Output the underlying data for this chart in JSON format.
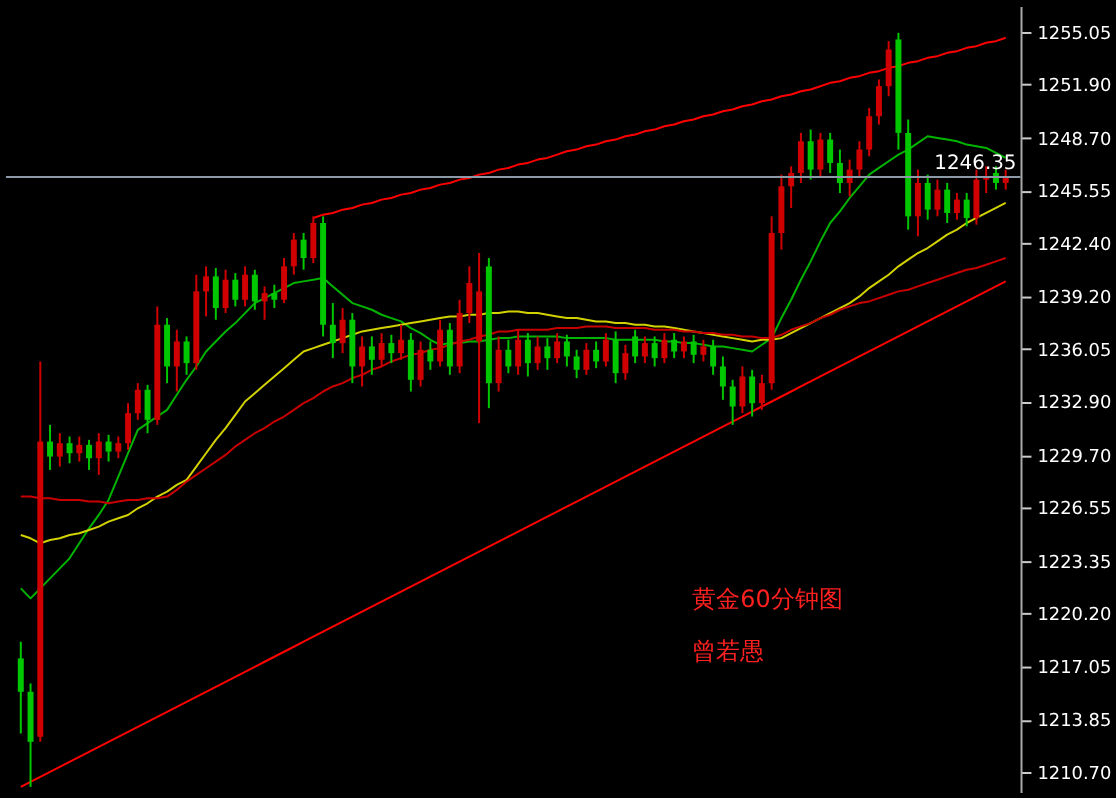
{
  "chart_data": {
    "type": "candlestick",
    "ylim": [
      1209.5,
      1256.6
    ],
    "categories": [
      null,
      null,
      null,
      null,
      null,
      null,
      null,
      null,
      null,
      null,
      null,
      null,
      null,
      null,
      null,
      null,
      null,
      null,
      null,
      null,
      null,
      null,
      null,
      null,
      null,
      null,
      null,
      null,
      null,
      null,
      null,
      null,
      null,
      null,
      null,
      null,
      null,
      null,
      null,
      null,
      null,
      null,
      null,
      null,
      null,
      null,
      null,
      null,
      null,
      null,
      null,
      null,
      null,
      null,
      null,
      null,
      null,
      null,
      null,
      null,
      null,
      null,
      null,
      null,
      null,
      null,
      null,
      null,
      null,
      null,
      null,
      null,
      null,
      null,
      null,
      null,
      null,
      null,
      null,
      null,
      null,
      null,
      null,
      null,
      null,
      null,
      null,
      null,
      null,
      null,
      null,
      null,
      null,
      null,
      null,
      null,
      null,
      null,
      null,
      null,
      null,
      null
    ],
    "yticks": [
      {
        "value": 1210.7,
        "label": "1210.70"
      },
      {
        "value": 1213.85,
        "label": "1213.85"
      },
      {
        "value": 1217.05,
        "label": "1217.05"
      },
      {
        "value": 1220.2,
        "label": "1220.20"
      },
      {
        "value": 1223.35,
        "label": "1223.35"
      },
      {
        "value": 1226.55,
        "label": "1226.55"
      },
      {
        "value": 1229.7,
        "label": "1229.70"
      },
      {
        "value": 1232.9,
        "label": "1232.90"
      },
      {
        "value": 1236.05,
        "label": "1236.05"
      },
      {
        "value": 1239.2,
        "label": "1239.20"
      },
      {
        "value": 1242.4,
        "label": "1242.40"
      },
      {
        "value": 1245.55,
        "label": "1245.55"
      },
      {
        "value": 1248.7,
        "label": "1248.70"
      },
      {
        "value": 1251.9,
        "label": "1251.90"
      },
      {
        "value": 1255.05,
        "label": "1255.05"
      }
    ],
    "tick_labels": "y",
    "series": [
      {
        "colors": [
          "#00c800",
          "#00c800",
          "#d00000",
          "#00c800",
          "#d00000",
          "#00c800",
          "#d00000",
          "#00c800",
          "#d00000",
          "#00c800",
          "#d00000",
          "#d00000",
          "#d00000",
          "#00c800",
          "#d00000",
          "#00c800",
          "#d00000",
          "#00c800",
          "#d00000",
          "#d00000",
          "#00c800",
          "#d00000",
          "#00c800",
          "#d00000",
          "#00c800",
          "#d00000",
          "#00c800",
          "#d00000",
          "#d00000",
          "#00c800",
          "#d00000",
          "#00c800",
          "#00c800",
          "#d00000",
          "#00c800",
          "#d00000",
          "#00c800",
          "#d00000",
          "#00c800",
          "#d00000",
          "#00c800",
          "#d00000",
          "#00c800",
          "#d00000",
          "#00c800",
          "#d00000",
          "#d00000",
          "#d00000",
          "#00c800",
          "#d00000",
          "#00c800",
          "#d00000",
          "#00c800",
          "#d00000",
          "#00c800",
          "#d00000",
          "#00c800",
          "#00c800",
          "#d00000",
          "#00c800",
          "#d00000",
          "#00c800",
          "#d00000",
          "#00c800",
          "#d00000",
          "#00c800",
          "#d00000",
          "#00c800",
          "#d00000",
          "#00c800",
          "#d00000",
          "#00c800",
          "#00c800",
          "#00c800",
          "#d00000",
          "#00c800",
          "#d00000",
          "#d00000",
          "#d00000",
          "#d00000",
          "#d00000",
          "#00c800",
          "#d00000",
          "#00c800",
          "#00c800",
          "#d00000",
          "#d00000",
          "#d00000",
          "#d00000",
          "#d00000",
          "#00c800",
          "#00c800",
          "#d00000",
          "#00c800",
          "#d00000",
          "#00c800",
          "#d00000",
          "#00c800",
          "#d00000",
          "#d00000",
          "#00c800",
          "#d00000"
        ],
        "ohlc": [
          [
            1217.5,
            1218.5,
            1213.0,
            1215.5
          ],
          [
            1215.5,
            1216.0,
            1209.8,
            1212.5
          ],
          [
            1212.8,
            1235.3,
            1212.5,
            1230.5
          ],
          [
            1230.5,
            1231.5,
            1228.8,
            1229.6
          ],
          [
            1229.6,
            1231.0,
            1229.0,
            1230.4
          ],
          [
            1230.4,
            1230.8,
            1229.2,
            1229.8
          ],
          [
            1229.8,
            1230.8,
            1229.3,
            1230.3
          ],
          [
            1230.3,
            1230.6,
            1228.8,
            1229.5
          ],
          [
            1229.5,
            1231.0,
            1228.5,
            1230.5
          ],
          [
            1230.5,
            1230.9,
            1229.3,
            1229.9
          ],
          [
            1229.9,
            1230.8,
            1229.5,
            1230.4
          ],
          [
            1230.4,
            1232.8,
            1230.0,
            1232.2
          ],
          [
            1232.2,
            1234.0,
            1231.8,
            1233.6
          ],
          [
            1233.6,
            1233.9,
            1231.0,
            1231.8
          ],
          [
            1231.8,
            1238.6,
            1231.5,
            1237.5
          ],
          [
            1237.5,
            1237.9,
            1234.0,
            1235.0
          ],
          [
            1235.0,
            1237.2,
            1233.5,
            1236.5
          ],
          [
            1236.5,
            1236.8,
            1234.5,
            1235.2
          ],
          [
            1235.2,
            1240.5,
            1234.8,
            1239.5
          ],
          [
            1239.5,
            1241.0,
            1238.0,
            1240.4
          ],
          [
            1240.4,
            1240.9,
            1237.8,
            1238.5
          ],
          [
            1238.5,
            1240.8,
            1238.2,
            1240.2
          ],
          [
            1240.2,
            1240.6,
            1238.6,
            1239.0
          ],
          [
            1239.0,
            1241.0,
            1238.6,
            1240.5
          ],
          [
            1240.5,
            1240.8,
            1238.4,
            1238.9
          ],
          [
            1238.9,
            1239.8,
            1237.8,
            1239.4
          ],
          [
            1239.4,
            1239.9,
            1238.5,
            1239.0
          ],
          [
            1239.0,
            1241.5,
            1238.8,
            1241.0
          ],
          [
            1241.0,
            1243.0,
            1240.5,
            1242.6
          ],
          [
            1242.6,
            1243.0,
            1240.8,
            1241.5
          ],
          [
            1241.5,
            1244.0,
            1241.2,
            1243.6
          ],
          [
            1243.6,
            1244.0,
            1236.8,
            1237.5
          ],
          [
            1237.5,
            1238.8,
            1235.5,
            1236.4
          ],
          [
            1236.4,
            1238.5,
            1235.8,
            1237.8
          ],
          [
            1237.8,
            1238.2,
            1234.0,
            1235.0
          ],
          [
            1235.0,
            1236.8,
            1233.8,
            1236.2
          ],
          [
            1236.2,
            1236.8,
            1234.5,
            1235.4
          ],
          [
            1235.4,
            1237.0,
            1235.0,
            1236.4
          ],
          [
            1236.4,
            1236.9,
            1235.2,
            1235.8
          ],
          [
            1235.8,
            1237.5,
            1235.4,
            1236.6
          ],
          [
            1236.6,
            1237.0,
            1233.5,
            1234.2
          ],
          [
            1234.2,
            1236.5,
            1233.8,
            1236.0
          ],
          [
            1236.0,
            1236.5,
            1234.8,
            1235.3
          ],
          [
            1235.3,
            1237.8,
            1235.0,
            1237.2
          ],
          [
            1237.2,
            1237.6,
            1234.5,
            1235.0
          ],
          [
            1235.0,
            1239.0,
            1234.6,
            1238.2
          ],
          [
            1238.2,
            1241.0,
            1237.6,
            1240.0
          ],
          [
            1236.5,
            1241.8,
            1231.6,
            1239.5
          ],
          [
            1241.0,
            1241.5,
            1232.5,
            1234.0
          ],
          [
            1234.0,
            1236.8,
            1233.5,
            1236.0
          ],
          [
            1236.0,
            1236.6,
            1234.6,
            1235.0
          ],
          [
            1235.0,
            1237.2,
            1234.5,
            1236.6
          ],
          [
            1236.6,
            1237.0,
            1234.4,
            1235.2
          ],
          [
            1235.2,
            1236.8,
            1234.8,
            1236.2
          ],
          [
            1236.2,
            1236.7,
            1234.8,
            1235.5
          ],
          [
            1235.5,
            1237.0,
            1235.2,
            1236.5
          ],
          [
            1236.5,
            1236.9,
            1235.0,
            1235.6
          ],
          [
            1235.6,
            1236.0,
            1234.3,
            1234.8
          ],
          [
            1234.8,
            1236.4,
            1234.5,
            1236.0
          ],
          [
            1236.0,
            1236.5,
            1234.9,
            1235.3
          ],
          [
            1235.3,
            1237.0,
            1235.0,
            1236.6
          ],
          [
            1236.6,
            1237.1,
            1234.0,
            1234.6
          ],
          [
            1234.6,
            1236.3,
            1234.2,
            1235.8
          ],
          [
            1236.8,
            1237.2,
            1235.2,
            1235.6
          ],
          [
            1235.6,
            1236.8,
            1235.2,
            1236.4
          ],
          [
            1236.4,
            1236.8,
            1235.0,
            1235.5
          ],
          [
            1235.5,
            1237.0,
            1235.2,
            1236.6
          ],
          [
            1236.6,
            1237.0,
            1235.5,
            1235.9
          ],
          [
            1235.9,
            1236.8,
            1235.5,
            1236.5
          ],
          [
            1236.5,
            1236.9,
            1235.2,
            1235.7
          ],
          [
            1235.7,
            1236.6,
            1235.3,
            1236.2
          ],
          [
            1236.2,
            1236.6,
            1234.5,
            1235.0
          ],
          [
            1235.0,
            1235.6,
            1233.0,
            1233.8
          ],
          [
            1233.8,
            1234.2,
            1231.5,
            1232.6
          ],
          [
            1232.6,
            1235.0,
            1232.2,
            1234.4
          ],
          [
            1234.4,
            1234.8,
            1232.0,
            1232.8
          ],
          [
            1232.8,
            1234.5,
            1232.4,
            1234.0
          ],
          [
            1234.0,
            1244.0,
            1233.6,
            1243.0
          ],
          [
            1243.0,
            1246.5,
            1242.0,
            1245.8
          ],
          [
            1245.8,
            1247.0,
            1244.5,
            1246.6
          ],
          [
            1246.6,
            1249.0,
            1246.0,
            1248.5
          ],
          [
            1248.5,
            1249.2,
            1246.2,
            1246.8
          ],
          [
            1246.8,
            1249.0,
            1246.4,
            1248.6
          ],
          [
            1248.6,
            1249.0,
            1246.6,
            1247.2
          ],
          [
            1247.2,
            1248.0,
            1245.4,
            1246.0
          ],
          [
            1246.0,
            1247.4,
            1245.2,
            1246.8
          ],
          [
            1246.8,
            1248.5,
            1246.4,
            1248.0
          ],
          [
            1248.0,
            1250.5,
            1247.6,
            1250.0
          ],
          [
            1250.0,
            1252.2,
            1249.5,
            1251.8
          ],
          [
            1251.8,
            1254.5,
            1251.2,
            1254.0
          ],
          [
            1254.6,
            1255.0,
            1248.0,
            1249.0
          ],
          [
            1249.0,
            1249.8,
            1243.2,
            1244.0
          ],
          [
            1244.0,
            1246.8,
            1242.8,
            1246.0
          ],
          [
            1246.0,
            1246.5,
            1243.8,
            1244.4
          ],
          [
            1244.4,
            1246.2,
            1244.0,
            1245.6
          ],
          [
            1245.6,
            1246.0,
            1243.6,
            1244.2
          ],
          [
            1244.2,
            1245.4,
            1243.8,
            1245.0
          ],
          [
            1245.0,
            1245.4,
            1243.4,
            1243.9
          ],
          [
            1243.9,
            1246.8,
            1243.5,
            1246.2
          ],
          [
            1246.2,
            1247.0,
            1245.4,
            1246.4
          ],
          [
            1246.6,
            1247.0,
            1245.6,
            1246.0
          ],
          [
            1246.0,
            1246.8,
            1245.6,
            1246.35
          ]
        ]
      },
      {
        "type": "line",
        "color": "#00b400",
        "values": [
          1221.7,
          1221.1,
          1221.7,
          1222.3,
          1222.9,
          1223.5,
          1224.4,
          1225.3,
          1226.1,
          1227.0,
          1228.4,
          1229.8,
          1231.2,
          1231.6,
          1232.0,
          1232.4,
          1233.3,
          1234.2,
          1235.0,
          1235.9,
          1236.5,
          1237.1,
          1237.6,
          1238.2,
          1238.8,
          1239.1,
          1239.4,
          1239.7,
          1240.0,
          1240.1,
          1240.2,
          1240.3,
          1239.8,
          1239.3,
          1238.8,
          1238.6,
          1238.4,
          1238.1,
          1237.9,
          1237.7,
          1237.3,
          1237.0,
          1236.6,
          1236.3,
          1236.4,
          1236.4,
          1236.5,
          1236.5,
          1236.6,
          1236.7,
          1236.7,
          1236.8,
          1236.8,
          1236.8,
          1236.8,
          1236.8,
          1236.7,
          1236.7,
          1236.7,
          1236.7,
          1236.7,
          1236.6,
          1236.6,
          1236.6,
          1236.6,
          1236.6,
          1236.5,
          1236.5,
          1236.4,
          1236.4,
          1236.3,
          1236.2,
          1236.2,
          1236.1,
          1236.0,
          1235.9,
          1236.3,
          1236.7,
          1237.9,
          1239.0,
          1240.2,
          1241.3,
          1242.5,
          1243.6,
          1244.3,
          1245.1,
          1245.8,
          1246.5,
          1246.9,
          1247.3,
          1247.7,
          1248.0,
          1248.4,
          1248.8,
          1248.7,
          1248.6,
          1248.5,
          1248.3,
          1248.2,
          1248.1,
          1247.8,
          1247.5
        ]
      },
      {
        "type": "line",
        "color": "#d2d200",
        "values": [
          1224.9,
          1224.7,
          1224.4,
          1224.6,
          1224.7,
          1224.9,
          1225.0,
          1225.2,
          1225.4,
          1225.7,
          1225.9,
          1226.1,
          1226.5,
          1226.8,
          1227.2,
          1227.5,
          1227.9,
          1228.2,
          1229.0,
          1229.8,
          1230.6,
          1231.3,
          1232.1,
          1232.9,
          1233.4,
          1233.9,
          1234.4,
          1234.9,
          1235.4,
          1235.9,
          1236.1,
          1236.3,
          1236.5,
          1236.7,
          1236.9,
          1237.1,
          1237.2,
          1237.3,
          1237.4,
          1237.5,
          1237.6,
          1237.7,
          1237.8,
          1237.9,
          1238.0,
          1238.0,
          1238.1,
          1238.1,
          1238.2,
          1238.2,
          1238.3,
          1238.3,
          1238.2,
          1238.2,
          1238.1,
          1238.0,
          1237.9,
          1237.9,
          1237.8,
          1237.7,
          1237.7,
          1237.6,
          1237.6,
          1237.5,
          1237.5,
          1237.4,
          1237.4,
          1237.3,
          1237.2,
          1237.1,
          1237.0,
          1236.9,
          1236.8,
          1236.7,
          1236.6,
          1236.5,
          1236.6,
          1236.6,
          1236.7,
          1237.0,
          1237.3,
          1237.6,
          1237.9,
          1238.2,
          1238.5,
          1238.8,
          1239.2,
          1239.7,
          1240.1,
          1240.5,
          1241.0,
          1241.4,
          1241.8,
          1242.1,
          1242.5,
          1242.9,
          1243.2,
          1243.6,
          1243.9,
          1244.2,
          1244.5,
          1244.8
        ]
      },
      {
        "type": "line",
        "color": "#c80000",
        "values": [
          1227.2,
          1227.2,
          1227.1,
          1227.1,
          1227.0,
          1227.0,
          1227.0,
          1226.9,
          1226.9,
          1226.8,
          1226.9,
          1227.0,
          1227.0,
          1227.1,
          1227.1,
          1227.2,
          1227.6,
          1228.1,
          1228.5,
          1228.9,
          1229.3,
          1229.7,
          1230.2,
          1230.6,
          1231.0,
          1231.3,
          1231.7,
          1232.0,
          1232.4,
          1232.8,
          1233.1,
          1233.5,
          1233.8,
          1234.0,
          1234.3,
          1234.5,
          1234.8,
          1235.0,
          1235.3,
          1235.5,
          1235.7,
          1235.8,
          1236.0,
          1236.1,
          1236.3,
          1236.5,
          1236.6,
          1236.8,
          1236.9,
          1237.1,
          1237.1,
          1237.2,
          1237.2,
          1237.2,
          1237.2,
          1237.3,
          1237.3,
          1237.3,
          1237.4,
          1237.4,
          1237.4,
          1237.3,
          1237.3,
          1237.3,
          1237.3,
          1237.2,
          1237.2,
          1237.2,
          1237.1,
          1237.1,
          1237.0,
          1237.0,
          1236.9,
          1236.9,
          1236.8,
          1236.8,
          1236.7,
          1236.7,
          1236.9,
          1237.2,
          1237.4,
          1237.6,
          1237.9,
          1238.1,
          1238.4,
          1238.6,
          1238.8,
          1238.9,
          1239.1,
          1239.3,
          1239.5,
          1239.6,
          1239.8,
          1240.0,
          1240.2,
          1240.4,
          1240.6,
          1240.8,
          1240.9,
          1241.1,
          1241.3,
          1241.5
        ]
      },
      {
        "type": "line",
        "color": "#ff0000",
        "values": [
          null,
          null,
          null,
          null,
          null,
          null,
          null,
          null,
          null,
          null,
          null,
          null,
          null,
          null,
          null,
          null,
          null,
          null,
          null,
          null,
          null,
          null,
          null,
          null,
          null,
          null,
          null,
          null,
          null,
          null,
          1243.9,
          1244.1,
          1244.2,
          1244.4,
          1244.5,
          1244.7,
          1244.8,
          1245.0,
          1245.1,
          1245.3,
          1245.4,
          1245.6,
          1245.7,
          1245.9,
          1246.0,
          1246.2,
          1246.3,
          1246.5,
          1246.6,
          1246.8,
          1246.9,
          1247.1,
          1247.2,
          1247.4,
          1247.5,
          1247.7,
          1247.9,
          1248.0,
          1248.2,
          1248.3,
          1248.5,
          1248.6,
          1248.8,
          1248.9,
          1249.1,
          1249.2,
          1249.4,
          1249.5,
          1249.7,
          1249.8,
          1250.0,
          1250.1,
          1250.3,
          1250.4,
          1250.6,
          1250.7,
          1250.9,
          1251.0,
          1251.2,
          1251.3,
          1251.5,
          1251.6,
          1251.8,
          1252.0,
          1252.1,
          1252.3,
          1252.4,
          1252.6,
          1252.7,
          1252.9,
          1253.0,
          1253.2,
          1253.3,
          1253.5,
          1253.6,
          1253.8,
          1253.9,
          1254.1,
          1254.2,
          1254.4,
          1254.5,
          1254.7
        ]
      },
      {
        "type": "line",
        "color": "#ff0000",
        "values": [
          1209.8,
          1210.1,
          1210.4,
          1210.7,
          1211.0,
          1211.3,
          1211.6,
          1211.9,
          1212.2,
          1212.5,
          1212.8,
          1213.1,
          1213.4,
          1213.7,
          1214.0,
          1214.3,
          1214.6,
          1214.9,
          1215.2,
          1215.5,
          1215.8,
          1216.1,
          1216.4,
          1216.7,
          1217.0,
          1217.3,
          1217.6,
          1217.9,
          1218.2,
          1218.5,
          1218.8,
          1219.1,
          1219.4,
          1219.7,
          1220.0,
          1220.3,
          1220.6,
          1220.9,
          1221.2,
          1221.5,
          1221.8,
          1222.1,
          1222.4,
          1222.7,
          1223.0,
          1223.3,
          1223.6,
          1223.9,
          1224.2,
          1224.5,
          1224.8,
          1225.1,
          1225.4,
          1225.7,
          1226.0,
          1226.3,
          1226.6,
          1226.9,
          1227.2,
          1227.5,
          1227.8,
          1228.1,
          1228.4,
          1228.7,
          1229.0,
          1229.3,
          1229.6,
          1229.9,
          1230.2,
          1230.5,
          1230.8,
          1231.1,
          1231.4,
          1231.7,
          1232.0,
          1232.3,
          1232.6,
          1232.9,
          1233.2,
          1233.5,
          1233.8,
          1234.1,
          1234.4,
          1234.7,
          1235.0,
          1235.3,
          1235.6,
          1235.9,
          1236.2,
          1236.5,
          1236.8,
          1237.1,
          1237.4,
          1237.7,
          1238.0,
          1238.3,
          1238.6,
          1238.9,
          1239.2,
          1239.5,
          1239.8,
          1240.1
        ]
      }
    ],
    "ref_lines": [
      {
        "axis": "y",
        "value": 1246.35,
        "label": "1246.35",
        "color": "#8c9aa8"
      }
    ],
    "annotations": [
      "黄金60分钟图",
      "曾若愚"
    ]
  }
}
